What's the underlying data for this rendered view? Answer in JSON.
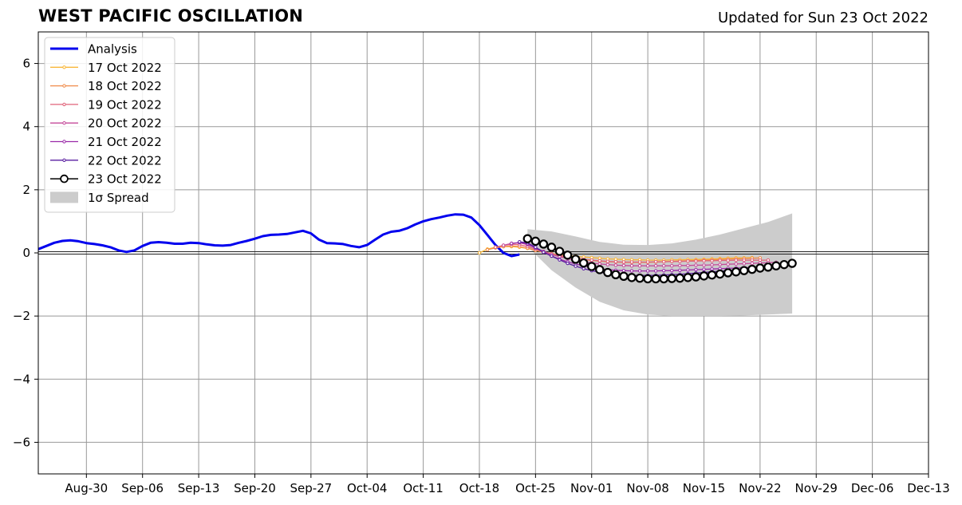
{
  "title": "WEST PACIFIC OSCILLATION",
  "subtitle": "Updated for Sun 23 Oct 2022",
  "chart_data": {
    "type": "line",
    "title": "WEST PACIFIC OSCILLATION",
    "subtitle": "Updated for Sun 23 Oct 2022",
    "xlabel": "",
    "ylabel": "",
    "xlim": [
      "2022-08-24",
      "2022-12-13"
    ],
    "ylim": [
      -7,
      7
    ],
    "x_ticks": [
      "2022-08-30",
      "2022-09-06",
      "2022-09-13",
      "2022-09-20",
      "2022-09-27",
      "2022-10-04",
      "2022-10-11",
      "2022-10-18",
      "2022-10-25",
      "2022-11-01",
      "2022-11-08",
      "2022-11-15",
      "2022-11-22",
      "2022-11-29",
      "2022-12-06",
      "2022-12-13"
    ],
    "x_tick_labels": [
      "Aug-30",
      "Sep-06",
      "Sep-13",
      "Sep-20",
      "Sep-27",
      "Oct-04",
      "Oct-11",
      "Oct-18",
      "Oct-25",
      "Nov-01",
      "Nov-08",
      "Nov-15",
      "Nov-22",
      "Nov-29",
      "Dec-06",
      "Dec-13"
    ],
    "y_ticks": [
      6,
      4,
      2,
      0,
      -2,
      -4,
      -6
    ],
    "y_tick_labels": [
      "6",
      "4",
      "2",
      "0",
      "−2",
      "−4",
      "−6"
    ],
    "grid": true,
    "zero_line": true,
    "legend_placement": "top-left",
    "legend": [
      "Analysis",
      "17 Oct 2022",
      "18 Oct 2022",
      "19 Oct 2022",
      "20 Oct 2022",
      "21 Oct 2022",
      "22 Oct 2022",
      "23 Oct 2022",
      "1σ Spread"
    ],
    "colors": {
      "analysis": "#0000ee",
      "17 Oct 2022": "#f9b73a",
      "18 Oct 2022": "#f08b4a",
      "19 Oct 2022": "#e0637a",
      "20 Oct 2022": "#c44a9a",
      "21 Oct 2022": "#9a2aa8",
      "22 Oct 2022": "#5a1ea0",
      "23 Oct 2022": "#000000",
      "spread": "#cccccc"
    },
    "analysis": {
      "name": "Analysis",
      "start": "2022-08-24",
      "step_days": 1,
      "values": [
        0.12,
        0.22,
        0.32,
        0.38,
        0.4,
        0.37,
        0.31,
        0.28,
        0.24,
        0.18,
        0.08,
        0.03,
        0.08,
        0.22,
        0.32,
        0.34,
        0.32,
        0.29,
        0.29,
        0.32,
        0.31,
        0.27,
        0.24,
        0.23,
        0.25,
        0.32,
        0.38,
        0.45,
        0.53,
        0.57,
        0.58,
        0.6,
        0.65,
        0.7,
        0.62,
        0.42,
        0.31,
        0.3,
        0.28,
        0.22,
        0.18,
        0.25,
        0.42,
        0.58,
        0.67,
        0.7,
        0.78,
        0.9,
        1.0,
        1.07,
        1.12,
        1.18,
        1.22,
        1.21,
        1.12,
        0.88,
        0.57,
        0.25,
        0.0,
        -0.1,
        -0.05
      ]
    },
    "forecasts": [
      {
        "name": "17 Oct 2022",
        "start": "2022-10-18",
        "step_days": 1,
        "values": [
          0.0,
          0.12,
          0.18,
          0.2,
          0.2,
          0.18,
          0.14,
          0.08,
          0.03,
          -0.02,
          -0.06,
          -0.08,
          -0.11,
          -0.13,
          -0.15,
          -0.17,
          -0.19,
          -0.2,
          -0.21,
          -0.22,
          -0.22,
          -0.23,
          -0.23,
          -0.23,
          -0.22,
          -0.22,
          -0.21,
          -0.21,
          -0.2,
          -0.19,
          -0.18,
          -0.17,
          -0.16,
          -0.16,
          -0.15
        ]
      },
      {
        "name": "18 Oct 2022",
        "start": "2022-10-19",
        "step_days": 1,
        "values": [
          0.1,
          0.16,
          0.2,
          0.22,
          0.2,
          0.15,
          0.08,
          0.02,
          -0.05,
          -0.1,
          -0.15,
          -0.18,
          -0.21,
          -0.24,
          -0.26,
          -0.28,
          -0.29,
          -0.3,
          -0.3,
          -0.3,
          -0.3,
          -0.29,
          -0.28,
          -0.27,
          -0.26,
          -0.25,
          -0.24,
          -0.23,
          -0.22,
          -0.21,
          -0.2,
          -0.19,
          -0.18,
          -0.17,
          -0.16
        ]
      },
      {
        "name": "19 Oct 2022",
        "start": "2022-10-20",
        "step_days": 1,
        "values": [
          0.18,
          0.24,
          0.27,
          0.26,
          0.2,
          0.12,
          0.04,
          -0.03,
          -0.08,
          -0.13,
          -0.17,
          -0.2,
          -0.23,
          -0.25,
          -0.27,
          -0.28,
          -0.29,
          -0.29,
          -0.29,
          -0.29,
          -0.28,
          -0.28,
          -0.27,
          -0.27,
          -0.26,
          -0.26,
          -0.25,
          -0.25,
          -0.24,
          -0.24,
          -0.23,
          -0.23,
          -0.23,
          -0.23,
          -0.23
        ]
      },
      {
        "name": "20 Oct 2022",
        "start": "2022-10-21",
        "step_days": 1,
        "values": [
          0.24,
          0.3,
          0.32,
          0.26,
          0.16,
          0.05,
          -0.05,
          -0.12,
          -0.18,
          -0.24,
          -0.28,
          -0.32,
          -0.35,
          -0.37,
          -0.39,
          -0.4,
          -0.41,
          -0.41,
          -0.41,
          -0.41,
          -0.41,
          -0.41,
          -0.4,
          -0.4,
          -0.39,
          -0.39,
          -0.38,
          -0.37,
          -0.36,
          -0.35,
          -0.34,
          -0.33,
          -0.32,
          -0.31,
          -0.3
        ]
      },
      {
        "name": "21 Oct 2022",
        "start": "2022-10-22",
        "step_days": 1,
        "values": [
          0.3,
          0.33,
          0.28,
          0.15,
          0.02,
          -0.1,
          -0.2,
          -0.28,
          -0.35,
          -0.41,
          -0.46,
          -0.5,
          -0.53,
          -0.55,
          -0.56,
          -0.57,
          -0.57,
          -0.57,
          -0.57,
          -0.56,
          -0.56,
          -0.55,
          -0.54,
          -0.53,
          -0.52,
          -0.51,
          -0.5,
          -0.49,
          -0.48,
          -0.47,
          -0.46,
          -0.45,
          -0.44,
          -0.43,
          -0.42
        ]
      },
      {
        "name": "22 Oct 2022",
        "start": "2022-10-23",
        "step_days": 1,
        "values": [
          0.35,
          0.32,
          0.18,
          0.02,
          -0.1,
          -0.22,
          -0.33,
          -0.42,
          -0.5,
          -0.56,
          -0.61,
          -0.65,
          -0.68,
          -0.7,
          -0.71,
          -0.71,
          -0.71,
          -0.71,
          -0.7,
          -0.69,
          -0.68,
          -0.66,
          -0.64,
          -0.62,
          -0.6,
          -0.58,
          -0.56,
          -0.54,
          -0.52,
          -0.5,
          -0.48,
          -0.46,
          -0.44,
          -0.42,
          -0.4
        ]
      },
      {
        "name": "23 Oct 2022",
        "start": "2022-10-24",
        "step_days": 1,
        "values": [
          0.45,
          0.37,
          0.28,
          0.18,
          0.05,
          -0.07,
          -0.2,
          -0.32,
          -0.43,
          -0.53,
          -0.62,
          -0.69,
          -0.74,
          -0.78,
          -0.8,
          -0.82,
          -0.82,
          -0.82,
          -0.81,
          -0.8,
          -0.78,
          -0.76,
          -0.73,
          -0.7,
          -0.67,
          -0.63,
          -0.6,
          -0.56,
          -0.52,
          -0.48,
          -0.45,
          -0.41,
          -0.37,
          -0.33
        ]
      }
    ],
    "spread": {
      "name": "1σ Spread",
      "x": [
        "2022-10-24",
        "2022-10-27",
        "2022-10-30",
        "2022-11-02",
        "2022-11-05",
        "2022-11-08",
        "2022-11-11",
        "2022-11-14",
        "2022-11-17",
        "2022-11-20",
        "2022-11-23",
        "2022-11-26"
      ],
      "upper": [
        0.75,
        0.68,
        0.52,
        0.35,
        0.26,
        0.25,
        0.3,
        0.42,
        0.58,
        0.78,
        0.98,
        1.25
      ],
      "lower": [
        0.2,
        -0.55,
        -1.1,
        -1.55,
        -1.82,
        -1.95,
        -2.0,
        -2.0,
        -2.0,
        -1.98,
        -1.95,
        -1.92
      ]
    }
  }
}
